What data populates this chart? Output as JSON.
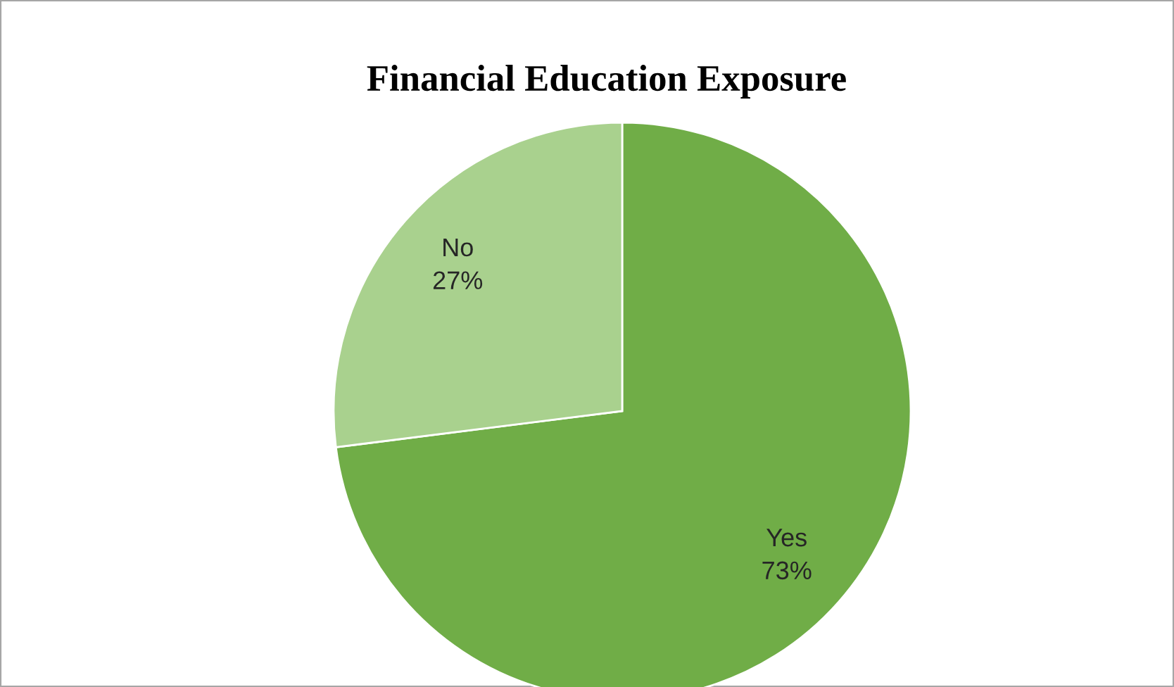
{
  "chart_data": {
    "type": "pie",
    "title": "Financial Education Exposure",
    "categories": [
      "Yes",
      "No"
    ],
    "values": [
      73,
      27
    ],
    "value_labels": [
      "73%",
      "27%"
    ],
    "colors": [
      "#70ad47",
      "#a9d18e"
    ],
    "legend": false
  }
}
